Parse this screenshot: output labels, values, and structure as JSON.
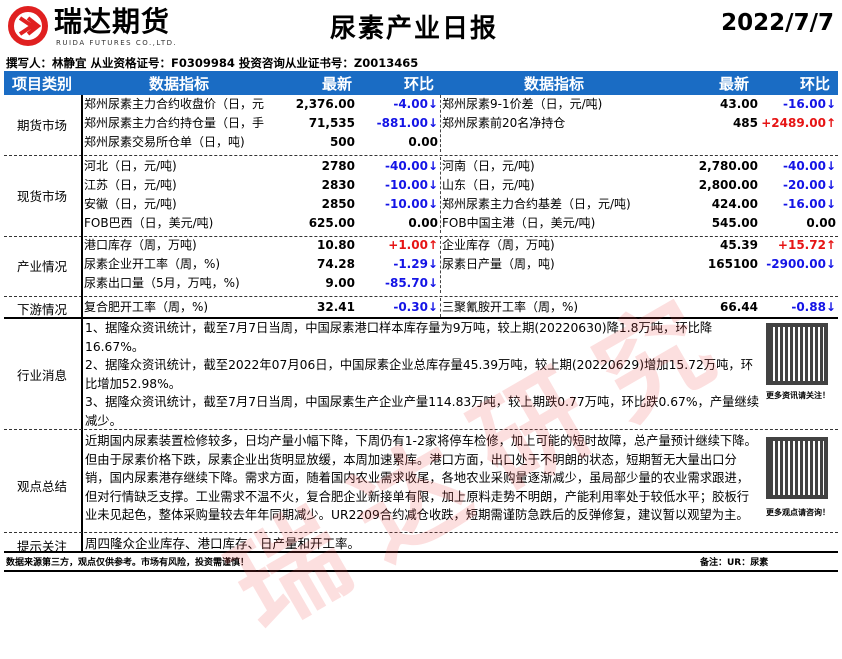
{
  "logo": {
    "cn": "瑞达期货",
    "en": "RUIDA FUTURES CO.,LTD."
  },
  "title": "尿素产业日报",
  "date": "2022/7/7",
  "author": "撰写人：林静宜  从业资格证号：F0309984    投资咨询从业证书号：Z0013465",
  "header": {
    "category": "项目类别",
    "indicator": "数据指标",
    "latest": "最新",
    "change": "环比"
  },
  "sections": [
    {
      "name": "期货市场",
      "rows": [
        {
          "l1": "郑州尿素主力合约收盘价（日，元/吨",
          "v1": "2,376.00",
          "c1": "-4.00↓",
          "l2": "郑州尿素9-1价差（日，元/吨)",
          "v2": "43.00",
          "c2": "-16.00↓"
        },
        {
          "l1": "郑州尿素主力合约持仓量（日，手)",
          "v1": "71,535",
          "c1": "-881.00↓",
          "l2": "郑州尿素前20名净持仓",
          "v2": "485",
          "c2": "+2489.00↑"
        },
        {
          "l1": "郑州尿素交易所仓单（日，吨)",
          "v1": "500",
          "c1": "0.00",
          "l2": "",
          "v2": "",
          "c2": ""
        }
      ]
    },
    {
      "name": "现货市场",
      "rows": [
        {
          "l1": "河北（日，元/吨)",
          "v1": "2780",
          "c1": "-40.00↓",
          "l2": "河南（日，元/吨)",
          "v2": "2,780.00",
          "c2": "-40.00↓"
        },
        {
          "l1": "江苏（日，元/吨)",
          "v1": "2830",
          "c1": "-10.00↓",
          "l2": "山东（日，元/吨)",
          "v2": "2,800.00",
          "c2": "-20.00↓"
        },
        {
          "l1": "安徽（日，元/吨)",
          "v1": "2850",
          "c1": "-10.00↓",
          "l2": "郑州尿素主力合约基差（日，元/吨)",
          "v2": "424.00",
          "c2": "-16.00↓"
        },
        {
          "l1": "FOB巴西（日，美元/吨)",
          "v1": "625.00",
          "c1": "0.00",
          "l2": "FOB中国主港（日，美元/吨)",
          "v2": "545.00",
          "c2": "0.00"
        }
      ]
    },
    {
      "name": "产业情况",
      "rows": [
        {
          "l1": "港口库存（周，万吨)",
          "v1": "10.80",
          "c1": "+1.00↑",
          "l2": "企业库存（周，万吨)",
          "v2": "45.39",
          "c2": "+15.72↑"
        },
        {
          "l1": "尿素企业开工率（周，%)",
          "v1": "74.28",
          "c1": "-1.29↓",
          "l2": "尿素日产量（周，吨)",
          "v2": "165100",
          "c2": "-2900.00↓"
        },
        {
          "l1": "尿素出口量（5月，万吨，%)",
          "v1": "9.00",
          "c1": "-85.70↓",
          "l2": "",
          "v2": "",
          "c2": ""
        }
      ]
    },
    {
      "name": "下游情况",
      "rows": [
        {
          "l1": "复合肥开工率（周，%)",
          "v1": "32.41",
          "c1": "-0.30↓",
          "l2": "三聚氰胺开工率（周，%)",
          "v2": "66.44",
          "c2": "-0.88↓"
        }
      ]
    }
  ],
  "news": {
    "name": "行业消息",
    "items": [
      "1、据隆众资讯统计，截至7月7日当周，中国尿素港口样本库存量为9万吨，较上期(20220630)降1.8万吨，环比降16.67%。",
      "2、据隆众资讯统计，截至2022年07月06日，中国尿素企业总库存量45.39万吨，较上期(20220629)增加15.72万吨，环比增加52.98%。",
      "3、据隆众资讯统计，截至7月7日当周，中国尿素生产企业产量114.83万吨，较上期跌0.77万吨，环比跌0.67%，产量继续减少。"
    ],
    "qr_caption": "更多资讯请关注！"
  },
  "views": {
    "name": "观点总结",
    "text": "近期国内尿素装置检修较多，日均产量小幅下降，下周仍有1-2家将停车检修，加上可能的短时故障，总产量预计继续下降。但由于尿素价格下跌，尿素企业出货明显放缓，本周加速累库。港口方面，出口处于不明朗的状态，短期暂无大量出口分销，国内尿素港存继续下降。需求方面，随着国内农业需求收尾，各地农业采购量逐渐减少，虽局部少量的农业需求跟进，但对行情缺乏支撑。工业需求不温不火，复合肥企业新接单有限，加上原料走势不明朗，产能利用率处于较低水平；胶板行业未见起色，整体采购量较去年年同期减少。UR2209合约减仓收跌，短期需谨防急跌后的反弹修复，建议暂以观望为主。",
    "qr_caption": "更多观点请咨询！"
  },
  "tips": {
    "name": "提示关注",
    "text": "周四隆众企业库存、港口库存、日产量和开工率。"
  },
  "footer": {
    "left": "数据来源第三方，观点仅供参考。市场有风险，投资需谨慎！",
    "right": "备注：UR：尿素"
  },
  "watermark": "瑞达研究",
  "colors": {
    "header_bg": "#1a6cc4",
    "negative": "#1414e6",
    "positive": "#e61414",
    "logo_red": "#e02020"
  }
}
